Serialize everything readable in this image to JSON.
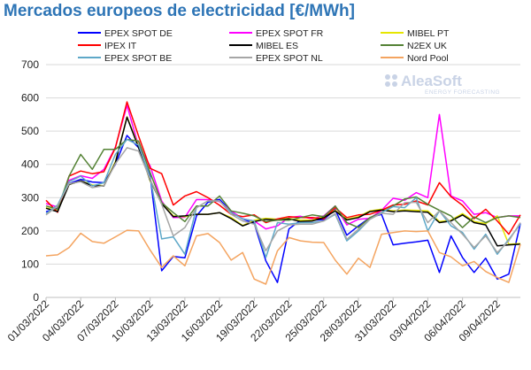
{
  "chart_data": {
    "type": "line",
    "title": "Mercados europeos de electricidad [€/MWh]",
    "xlabel": "",
    "ylabel": "",
    "ylim": [
      0,
      700
    ],
    "yticks": [
      0,
      100,
      200,
      300,
      400,
      500,
      600,
      700
    ],
    "grid": true,
    "legend_position": "top",
    "x": [
      "01/03/2022",
      "02/03/2022",
      "03/03/2022",
      "04/03/2022",
      "05/03/2022",
      "06/03/2022",
      "07/03/2022",
      "08/03/2022",
      "09/03/2022",
      "10/03/2022",
      "11/03/2022",
      "12/03/2022",
      "13/03/2022",
      "14/03/2022",
      "15/03/2022",
      "16/03/2022",
      "17/03/2022",
      "18/03/2022",
      "19/03/2022",
      "20/03/2022",
      "21/03/2022",
      "22/03/2022",
      "23/03/2022",
      "24/03/2022",
      "25/03/2022",
      "26/03/2022",
      "27/03/2022",
      "28/03/2022",
      "29/03/2022",
      "30/03/2022",
      "31/03/2022",
      "01/04/2022",
      "02/04/2022",
      "03/04/2022",
      "04/04/2022",
      "05/04/2022",
      "06/04/2022",
      "07/04/2022",
      "08/04/2022",
      "09/04/2022",
      "10/04/2022",
      "11/04/2022"
    ],
    "xticks": [
      "01/03/2022",
      "04/03/2022",
      "07/03/2022",
      "10/03/2022",
      "13/03/2022",
      "16/03/2022",
      "19/03/2022",
      "22/03/2022",
      "25/03/2022",
      "28/03/2022",
      "31/03/2022",
      "03/04/2022",
      "06/04/2022",
      "09/04/2022"
    ],
    "series": [
      {
        "name": "EPEX SPOT DE",
        "color": "#0000ff",
        "values": [
          258,
          268,
          342,
          355,
          347,
          345,
          400,
          487,
          450,
          365,
          80,
          123,
          119,
          245,
          286,
          295,
          258,
          236,
          222,
          110,
          45,
          206,
          232,
          232,
          234,
          264,
          187,
          215,
          240,
          250,
          158,
          163,
          167,
          172,
          75,
          185,
          120,
          75,
          118,
          55,
          70,
          222
        ]
      },
      {
        "name": "EPEX SPOT FR",
        "color": "#ff00ff",
        "values": [
          282,
          272,
          352,
          366,
          358,
          385,
          452,
          577,
          455,
          395,
          290,
          240,
          241,
          294,
          294,
          288,
          260,
          236,
          230,
          206,
          215,
          240,
          244,
          236,
          245,
          275,
          218,
          235,
          238,
          262,
          298,
          292,
          315,
          300,
          550,
          305,
          290,
          250,
          255,
          240,
          245,
          245
        ]
      },
      {
        "name": "MIBEL PT",
        "color": "#e6e600",
        "values": [
          270,
          260,
          340,
          350,
          338,
          336,
          408,
          543,
          455,
          350,
          283,
          245,
          243,
          250,
          250,
          255,
          240,
          216,
          232,
          238,
          235,
          238,
          232,
          233,
          243,
          262,
          235,
          243,
          260,
          265,
          260,
          263,
          262,
          260,
          228,
          232,
          252,
          228,
          222,
          245,
          160,
          162
        ]
      },
      {
        "name": "IPEX IT",
        "color": "#ff0000",
        "values": [
          292,
          256,
          365,
          380,
          372,
          378,
          450,
          588,
          485,
          388,
          372,
          278,
          305,
          318,
          300,
          277,
          250,
          243,
          248,
          225,
          236,
          243,
          240,
          240,
          236,
          270,
          240,
          248,
          250,
          262,
          278,
          280,
          290,
          278,
          345,
          303,
          277,
          237,
          265,
          230,
          190,
          248
        ]
      },
      {
        "name": "MIBEL ES",
        "color": "#000000",
        "values": [
          268,
          258,
          340,
          350,
          336,
          335,
          405,
          542,
          450,
          352,
          282,
          243,
          245,
          250,
          250,
          255,
          237,
          215,
          228,
          235,
          232,
          236,
          228,
          230,
          240,
          260,
          233,
          240,
          258,
          263,
          258,
          260,
          258,
          256,
          225,
          230,
          248,
          225,
          218,
          155,
          158,
          160
        ]
      },
      {
        "name": "N2EX UK",
        "color": "#548235",
        "values": [
          275,
          265,
          365,
          430,
          385,
          445,
          445,
          475,
          470,
          375,
          285,
          255,
          228,
          275,
          275,
          305,
          260,
          253,
          245,
          228,
          232,
          232,
          240,
          248,
          243,
          275,
          225,
          210,
          240,
          255,
          275,
          296,
          302,
          280,
          262,
          245,
          210,
          242,
          225,
          240,
          245,
          240
        ]
      },
      {
        "name": "EPEX SPOT BE",
        "color": "#5ea8c8",
        "values": [
          252,
          278,
          348,
          365,
          335,
          345,
          430,
          475,
          458,
          360,
          176,
          182,
          130,
          270,
          290,
          290,
          255,
          236,
          230,
          120,
          225,
          220,
          225,
          225,
          230,
          250,
          170,
          200,
          235,
          255,
          273,
          270,
          300,
          200,
          260,
          215,
          195,
          145,
          190,
          130,
          175,
          220
        ]
      },
      {
        "name": "EPEX SPOT NL",
        "color": "#a6a6a6",
        "values": [
          248,
          275,
          342,
          348,
          330,
          336,
          402,
          450,
          440,
          355,
          280,
          185,
          210,
          270,
          290,
          290,
          250,
          230,
          220,
          140,
          200,
          218,
          220,
          220,
          230,
          252,
          175,
          205,
          235,
          253,
          250,
          285,
          286,
          225,
          260,
          225,
          190,
          150,
          185,
          135,
          170,
          225
        ]
      },
      {
        "name": "Nord Pool",
        "color": "#f4a460",
        "values": [
          125,
          128,
          150,
          193,
          168,
          163,
          182,
          202,
          200,
          142,
          90,
          125,
          95,
          185,
          192,
          165,
          112,
          135,
          55,
          40,
          140,
          180,
          170,
          166,
          165,
          112,
          70,
          118,
          90,
          190,
          195,
          200,
          198,
          200,
          135,
          122,
          95,
          108,
          78,
          60,
          45,
          160
        ]
      }
    ]
  },
  "logo": {
    "brand_text": "AleaSoft",
    "tagline": "ENERGY FORECASTING"
  }
}
